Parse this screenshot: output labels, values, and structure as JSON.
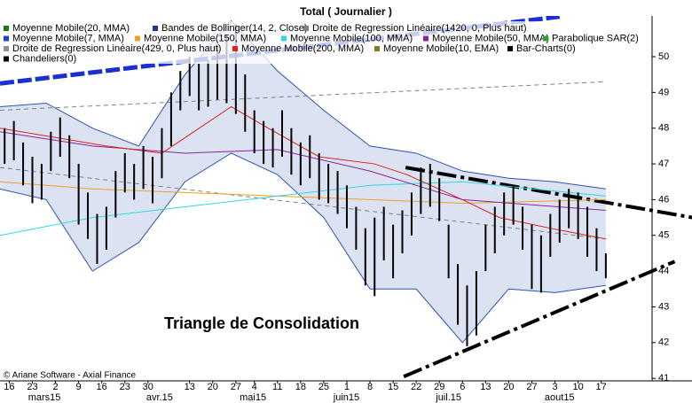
{
  "chart_data": {
    "type": "stock",
    "title": "Total  ( Journalier )",
    "annotation": "Triangle de Consolidation",
    "credit": "© Ariane Software - Axial Finance",
    "legend": [
      [
        {
          "name": "Moyenne Mobile(20, MMA)",
          "color": "#1a7a1a"
        },
        {
          "name": "Bandes de Bollinger(14, 2, Close)",
          "color": "#1a3a8a"
        },
        {
          "name": "Droite de Regression Linéaire(1420, 0, Plus haut)",
          "color": "#808080"
        }
      ],
      [
        {
          "name": "Moyenne Mobile(7, MMA)",
          "color": "#2040d0"
        },
        {
          "name": "Moyenne Mobile(150, MMA)",
          "color": "#f0a020"
        },
        {
          "name": "Moyenne Mobile(100, MMA)",
          "color": "#30d8e0"
        },
        {
          "name": "Moyenne Mobile(50, MMA)",
          "color": "#9020a0"
        },
        {
          "name": "Parabolique SAR(2)",
          "color": "#30a030"
        }
      ],
      [
        {
          "name": "Droite de Regression Linéaire(429, 0, Plus haut)",
          "color": "#909090"
        },
        {
          "name": "Moyenne Mobile(200, MMA)",
          "color": "#e02020"
        },
        {
          "name": "Moyenne Mobile(10, EMA)",
          "color": "#808020"
        },
        {
          "name": "Bar-Charts(0)",
          "color": "#000000"
        }
      ],
      [
        {
          "name": "Chandeliers(0)",
          "color": "#000000"
        }
      ]
    ],
    "xlim": [
      0,
      141
    ],
    "ylim": [
      40.93,
      51.14
    ],
    "yticks": [
      41,
      42,
      43,
      44,
      45,
      46,
      47,
      48,
      49,
      50
    ],
    "xticks": [
      {
        "value": 2,
        "label": "16"
      },
      {
        "value": 7,
        "label": "23"
      },
      {
        "value": 12,
        "label": "2"
      },
      {
        "value": 17,
        "label": "9"
      },
      {
        "value": 22,
        "label": "16"
      },
      {
        "value": 27,
        "label": "23"
      },
      {
        "value": 32,
        "label": "30"
      },
      {
        "value": 41,
        "label": "13"
      },
      {
        "value": 46,
        "label": "20"
      },
      {
        "value": 51,
        "label": "27"
      },
      {
        "value": 55,
        "label": "4"
      },
      {
        "value": 60,
        "label": "11"
      },
      {
        "value": 65,
        "label": "18"
      },
      {
        "value": 70,
        "label": "25"
      },
      {
        "value": 75,
        "label": "1"
      },
      {
        "value": 80,
        "label": "8"
      },
      {
        "value": 85,
        "label": "15"
      },
      {
        "value": 90,
        "label": "22"
      },
      {
        "value": 95,
        "label": "29"
      },
      {
        "value": 100,
        "label": "6"
      },
      {
        "value": 105,
        "label": "13"
      },
      {
        "value": 110,
        "label": "20"
      },
      {
        "value": 115,
        "label": "27"
      },
      {
        "value": 120,
        "label": "3"
      },
      {
        "value": 125,
        "label": "10"
      },
      {
        "value": 130,
        "label": "17"
      }
    ],
    "months": [
      {
        "value": 9.6,
        "label": "mars15"
      },
      {
        "value": 34.5,
        "label": "avr.15"
      },
      {
        "value": 54.7,
        "label": "mai15"
      },
      {
        "value": 74.9,
        "label": "juin15"
      },
      {
        "value": 97,
        "label": "juil.15"
      },
      {
        "value": 121,
        "label": "aout15"
      }
    ],
    "bars": {
      "color": "#000000",
      "x": [
        1,
        3,
        5,
        7,
        9,
        11,
        13,
        15,
        17,
        19,
        21,
        23,
        25,
        27,
        29,
        31,
        33,
        35,
        37,
        39,
        41,
        43,
        45,
        47,
        49,
        51,
        53,
        55,
        57,
        59,
        61,
        63,
        65,
        67,
        69,
        71,
        73,
        75,
        77,
        79,
        81,
        83,
        85,
        87,
        89,
        91,
        93,
        95,
        97,
        99,
        101,
        103,
        105,
        107,
        109,
        111,
        113,
        115,
        117,
        119,
        121,
        123,
        125,
        127,
        129,
        131
      ],
      "high": [
        48.0,
        48.2,
        47.6,
        47.2,
        47.0,
        47.9,
        48.3,
        47.8,
        47.0,
        46.2,
        45.6,
        45.8,
        46.8,
        47.3,
        47.0,
        47.5,
        47.2,
        48.0,
        49.0,
        49.6,
        50.0,
        49.8,
        49.9,
        50.3,
        50.6,
        50.9,
        49.5,
        48.5,
        48.2,
        48.0,
        48.5,
        48.0,
        47.6,
        47.8,
        47.3,
        47.0,
        46.8,
        46.4,
        45.8,
        45.2,
        45.5,
        45.8,
        45.3,
        45.7,
        46.2,
        46.9,
        47.0,
        46.6,
        45.3,
        44.2,
        43.6,
        44.0,
        45.3,
        45.8,
        46.2,
        46.4,
        45.8,
        45.3,
        45.0,
        45.6,
        46.0,
        46.3,
        46.2,
        45.8,
        45.2,
        44.5
      ],
      "low": [
        47.0,
        47.1,
        46.4,
        45.9,
        46.0,
        46.8,
        47.2,
        46.6,
        45.3,
        44.9,
        44.2,
        44.6,
        45.5,
        46.2,
        46.0,
        46.3,
        45.9,
        46.6,
        47.5,
        48.5,
        48.9,
        48.5,
        48.6,
        48.8,
        48.7,
        48.4,
        47.9,
        47.3,
        47.0,
        46.9,
        47.2,
        46.7,
        46.4,
        46.6,
        46.0,
        45.9,
        45.6,
        45.2,
        44.6,
        43.6,
        43.3,
        44.3,
        43.8,
        44.5,
        45.0,
        45.6,
        45.8,
        45.4,
        43.8,
        42.5,
        41.9,
        42.2,
        44.0,
        44.5,
        45.0,
        45.3,
        44.6,
        43.5,
        43.4,
        44.4,
        44.8,
        45.2,
        44.9,
        44.4,
        44.0,
        43.8
      ]
    },
    "bollinger": {
      "color": "#3050b0",
      "fill": "#dbe3f3",
      "x": [
        0,
        10,
        20,
        30,
        40,
        50,
        60,
        70,
        80,
        90,
        100,
        110,
        120,
        131
      ],
      "upper": [
        48.6,
        48.7,
        48.0,
        47.5,
        49.5,
        51.0,
        49.6,
        48.5,
        47.5,
        47.3,
        46.8,
        46.6,
        46.5,
        46.3
      ],
      "lower": [
        46.3,
        46.0,
        44.0,
        44.8,
        46.5,
        47.3,
        46.7,
        45.5,
        43.5,
        43.5,
        42.0,
        43.5,
        43.4,
        43.6
      ]
    },
    "indicators": [
      {
        "color": "#f0a020",
        "x": [
          0,
          20,
          40,
          60,
          80,
          100,
          131
        ],
        "values": [
          46.5,
          46.3,
          46.2,
          46.1,
          46.0,
          45.9,
          46.0
        ]
      },
      {
        "color": "#30d8e0",
        "x": [
          0,
          20,
          40,
          60,
          80,
          100,
          131
        ],
        "values": [
          45.0,
          45.5,
          45.8,
          46.1,
          46.4,
          46.5,
          46.1
        ]
      },
      {
        "color": "#9020a0",
        "x": [
          0,
          20,
          40,
          60,
          80,
          100,
          131
        ],
        "values": [
          47.9,
          47.5,
          47.3,
          47.4,
          46.8,
          46.0,
          45.7
        ]
      },
      {
        "color": "#e02020",
        "x": [
          0,
          23,
          35,
          50,
          58,
          69,
          81,
          88,
          100,
          108,
          119,
          131
        ],
        "values": [
          48.0,
          47.5,
          47.3,
          48.6,
          48.0,
          47.2,
          47.0,
          46.7,
          46.0,
          45.5,
          45.2,
          44.9
        ]
      }
    ],
    "trendlines": [
      {
        "color": "#808080",
        "x": [
          0,
          131
        ],
        "values": [
          48.5,
          49.3
        ]
      },
      {
        "color": "#808080",
        "x": [
          0,
          131
        ],
        "values": [
          46.9,
          44.9
        ]
      },
      {
        "color": "#1a30d0",
        "x": [
          0,
          121
        ],
        "values": [
          49.25,
          51.12
        ]
      },
      {
        "color": "#000000",
        "x": [
          87.7,
          149.7
        ],
        "values": [
          46.9,
          45.5
        ]
      },
      {
        "color": "#000000",
        "x": [
          87.3,
          145.9
        ],
        "values": [
          41.05,
          44.27
        ]
      }
    ]
  }
}
